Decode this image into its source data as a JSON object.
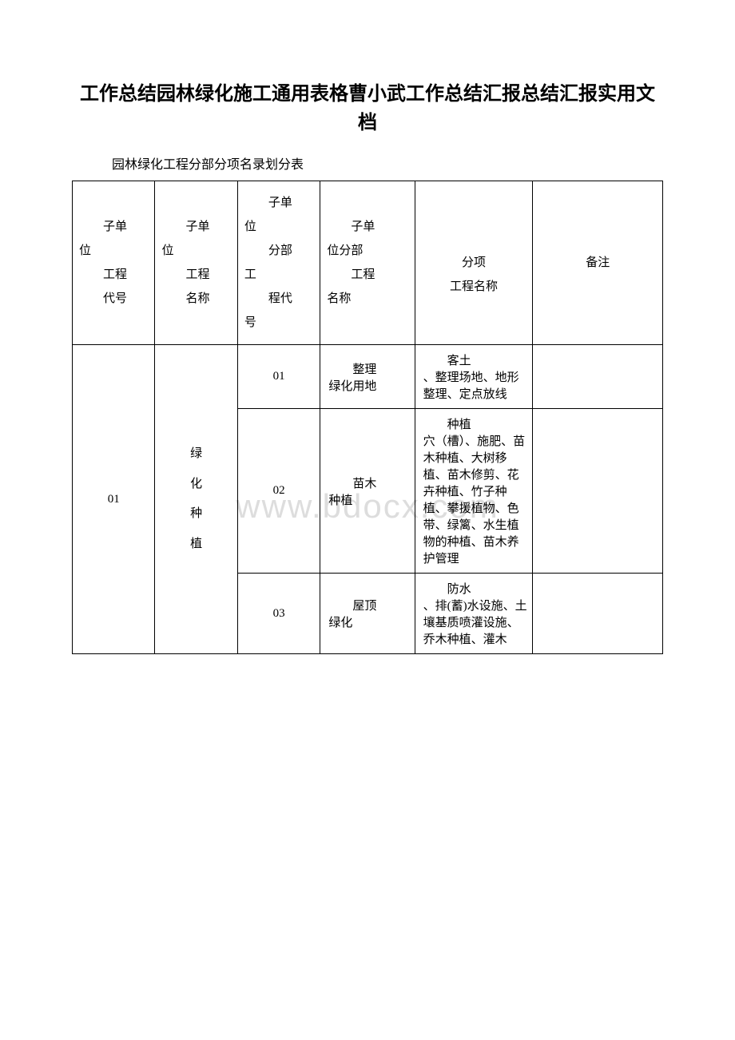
{
  "title": "工作总结园林绿化施工通用表格曹小武工作总结汇报总结汇报实用文档",
  "subtitle": "园林绿化工程分部分项名录划分表",
  "watermark": "www.bdocx.com",
  "headers": {
    "col1_line1": "子单",
    "col1_line2": "位",
    "col1_line3": "工程",
    "col1_line4": "代号",
    "col2_line1": "子单",
    "col2_line2": "位",
    "col2_line3": "工程",
    "col2_line4": "名称",
    "col3_line1": "子单",
    "col3_line2": "位",
    "col3_line3": "分部",
    "col3_line4": "工",
    "col3_line5": "程代",
    "col3_line6": "号",
    "col4_line1": "子单",
    "col4_line2": "位分部",
    "col4_line3": "工程",
    "col4_line4": "名称",
    "col5_line1": "分项",
    "col5_line2": "工程名称",
    "col6": "备注"
  },
  "rows": {
    "row1": {
      "code1": "01",
      "name1_l1": "绿",
      "name1_l2": "化",
      "name1_l3": "种",
      "name1_l4": "植",
      "code2": "01",
      "name2_l1": "整理",
      "name2_l2": "绿化用地",
      "detail_l1": "客土",
      "detail_l2": "、整理场地、地形整理、定点放线"
    },
    "row2": {
      "code2": "02",
      "name2_l1": "苗木",
      "name2_l2": "种植",
      "detail_l1": "种植",
      "detail_l2": "穴（槽）、施肥、苗木种植、大树移植、苗木修剪、花卉种植、竹子种植、攀援植物、色带、绿篱、水生植物的种植、苗木养护管理"
    },
    "row3": {
      "code2": "03",
      "name2_l1": "屋顶",
      "name2_l2": "绿化",
      "detail_l1": "防水",
      "detail_l2": "、排(蓄)水设施、土壤基质喷灌设施、乔木种植、灌木"
    }
  }
}
